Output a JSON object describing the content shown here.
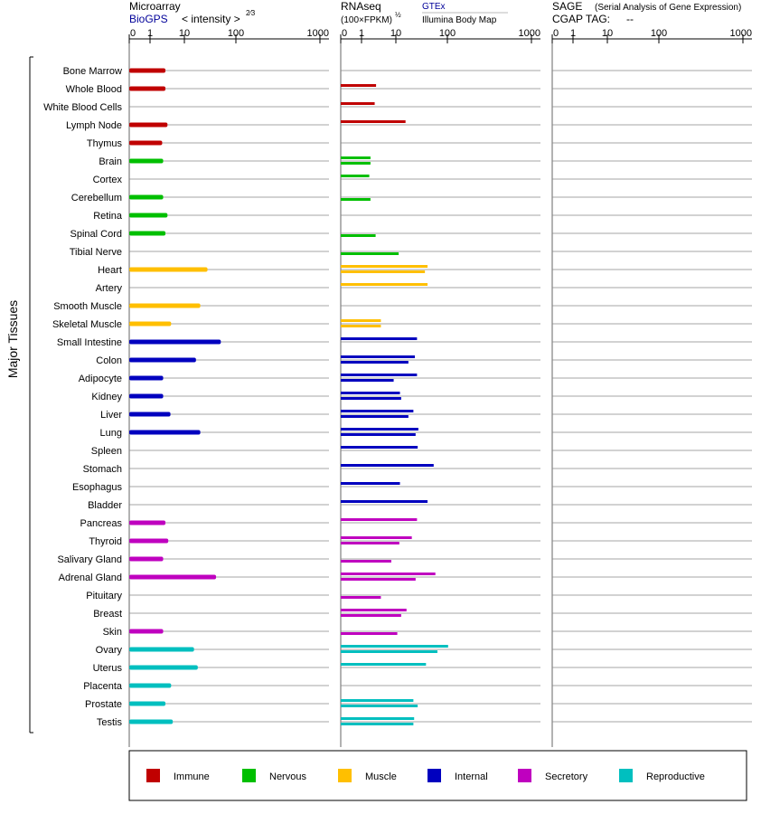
{
  "panels": {
    "microarray": {
      "title": "Microarray",
      "source": "BioGPS",
      "metric": "< intensity >",
      "exponent": "2⁄3",
      "ticks": [
        "0",
        "1",
        "10",
        "100",
        "1000"
      ]
    },
    "rnaseq": {
      "title": "RNAseq",
      "metric": "(100×FPKM)",
      "exponent": "½",
      "source1": "GTEx",
      "source2": "Illumina Body Map",
      "ticks": [
        "0",
        "1",
        "10",
        "100",
        "1000"
      ]
    },
    "sage": {
      "title": "SAGE",
      "subtitle": "(Serial Analysis of Gene Expression)",
      "tag_label": "CGAP TAG:",
      "tag_value": "--",
      "ticks": [
        "0",
        "1",
        "10",
        "100",
        "1000"
      ]
    }
  },
  "side_label": "Major Tissues",
  "legend": [
    {
      "label": "Immune",
      "color": "#c00000"
    },
    {
      "label": "Nervous",
      "color": "#00bf00"
    },
    {
      "label": "Muscle",
      "color": "#ffbf00"
    },
    {
      "label": "Internal",
      "color": "#0000bf"
    },
    {
      "label": "Secretory",
      "color": "#bf00bf"
    },
    {
      "label": "Reproductive",
      "color": "#00bfbf"
    }
  ],
  "chart_data": {
    "type": "bar",
    "scale_note": "axis labels 0,1,10,100,1000 on a power-transformed scale",
    "categories": [
      "Bone Marrow",
      "Whole Blood",
      "White Blood Cells",
      "Lymph Node",
      "Thymus",
      "Brain",
      "Cortex",
      "Cerebellum",
      "Retina",
      "Spinal Cord",
      "Tibial Nerve",
      "Heart",
      "Artery",
      "Smooth Muscle",
      "Skeletal Muscle",
      "Small Intestine",
      "Colon",
      "Adipocyte",
      "Kidney",
      "Liver",
      "Lung",
      "Spleen",
      "Stomach",
      "Esophagus",
      "Bladder",
      "Pancreas",
      "Thyroid",
      "Salivary Gland",
      "Adrenal Gland",
      "Pituitary",
      "Breast",
      "Skin",
      "Ovary",
      "Uterus",
      "Placenta",
      "Prostate",
      "Testis"
    ],
    "groups": [
      "Immune",
      "Immune",
      "Immune",
      "Immune",
      "Immune",
      "Nervous",
      "Nervous",
      "Nervous",
      "Nervous",
      "Nervous",
      "Nervous",
      "Muscle",
      "Muscle",
      "Muscle",
      "Muscle",
      "Internal",
      "Internal",
      "Internal",
      "Internal",
      "Internal",
      "Internal",
      "Internal",
      "Internal",
      "Internal",
      "Internal",
      "Secretory",
      "Secretory",
      "Secretory",
      "Secretory",
      "Secretory",
      "Secretory",
      "Secretory",
      "Reproductive",
      "Reproductive",
      "Reproductive",
      "Reproductive",
      "Reproductive"
    ],
    "microarray": [
      3.5,
      3.5,
      null,
      4,
      2.8,
      3,
      null,
      3,
      4,
      3.5,
      null,
      35,
      null,
      25,
      5,
      60,
      20,
      3,
      3,
      4.8,
      25,
      null,
      null,
      null,
      null,
      3.5,
      4.2,
      3,
      50,
      null,
      null,
      3,
      18,
      22,
      5,
      3.5,
      5.5
    ],
    "rnaseq_gtex": [
      null,
      3.3,
      3.0,
      18,
      null,
      2.2,
      2.0,
      null,
      null,
      null,
      null,
      50,
      50,
      null,
      4.5,
      32,
      29,
      32,
      13,
      27,
      34,
      33,
      63,
      13,
      50,
      32,
      25,
      null,
      67,
      null,
      19,
      null,
      103,
      47,
      null,
      27,
      28
    ],
    "rnaseq_ibm": [
      null,
      null,
      null,
      null,
      null,
      2.2,
      null,
      2.2,
      null,
      3.2,
      12,
      45,
      null,
      null,
      4.5,
      null,
      21,
      9,
      14,
      21,
      30,
      null,
      null,
      null,
      null,
      null,
      12.5,
      8,
      30,
      4.5,
      14,
      11,
      72,
      null,
      null,
      33,
      27
    ],
    "sage": []
  }
}
